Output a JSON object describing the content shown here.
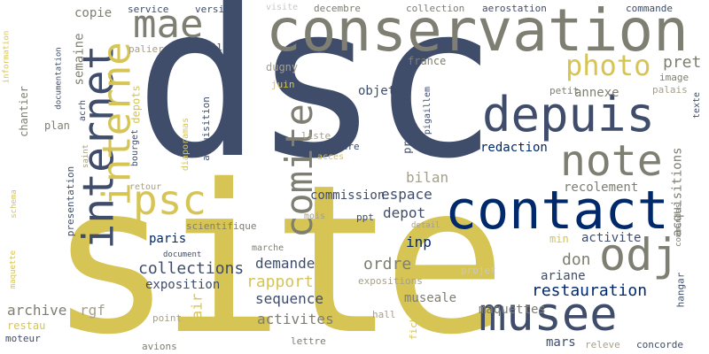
{
  "words": {
    "dsc": "dsc",
    "site": "site",
    "conservation": "conservation",
    "contact": "contact",
    "depuis": "depuis",
    "musee": "musee",
    "internet": "internet",
    "interne": "interne",
    "comite": "comite",
    "note": "note",
    "photo": "photo",
    "odj": "odj",
    "psc": "psc",
    "mae": "mae",
    "pret": "pret",
    "restauration": "restauration",
    "collections": "collections",
    "rapport": "rapport",
    "sequence": "sequence",
    "activites": "activites",
    "demande": "demande",
    "ordre": "ordre",
    "expositions": "expositions",
    "maquettes": "maquettes",
    "espace": "espace",
    "commission": "commission",
    "depot": "depot",
    "bilan": "bilan",
    "acquisitions": "acquisitions",
    "recolement": "recolement",
    "activite": "activite",
    "don": "don",
    "ariane": "ariane",
    "inp": "inp",
    "paris": "paris",
    "exposition": "exposition",
    "archive": "archive",
    "rgf": "rgf",
    "air": "air",
    "restau": "restau",
    "moteur": "moteur",
    "avions": "avions",
    "point": "point",
    "lettre": "lettre",
    "hall": "hall",
    "fiche": "fiche",
    "musealeword": "museale",
    "projet": "projet",
    "mars": "mars",
    "releve": "releve",
    "concorde": "concorde",
    "hangar": "hangar",
    "texte": "texte",
    "palais": "palais",
    "image": "image",
    "commandes": "commandes",
    "min": "min",
    "annexe": "annexe",
    "petit": "petit",
    "objet": "objet",
    "redaction": "redaction",
    "proposition": "proposition",
    "pigaillem": "pigaillem",
    "france": "france",
    "dugny": "dugny",
    "juin": "juin",
    "depots": "depots",
    "palier": "palier",
    "travail": "travail",
    "semaine": "semaine",
    "copie": "copie",
    "service": "service",
    "version": "version",
    "visite": "visite",
    "decembre": "decembre",
    "collection": "collection",
    "aerostation": "aerostation",
    "commande": "commande",
    "information": "information",
    "documentation": "documentation",
    "acrh": "acrh",
    "plan": "plan",
    "chantier": "chantier",
    "presentation": "presentation",
    "schema": "schema",
    "maquette": "maquette",
    "saint": "saint",
    "bourget": "bourget",
    "diaporamas": "diaporamas",
    "acquisition": "acquisition",
    "liste": "liste",
    "procedure": "procedure",
    "acces": "acces",
    "retour": "retour",
    "scientifique": "scientifique",
    "mois": "mois",
    "ppt": "ppt",
    "detail": "detail",
    "marche": "marche",
    "document": "document"
  },
  "colors": {
    "dark_slate": "#3f4d6b",
    "gold": "#d6c454",
    "navy": "#00296b",
    "gray": "#7e7e72",
    "taupe": "#a6a08a",
    "light_gray": "#c8c8c8",
    "background": "#ffffff"
  }
}
